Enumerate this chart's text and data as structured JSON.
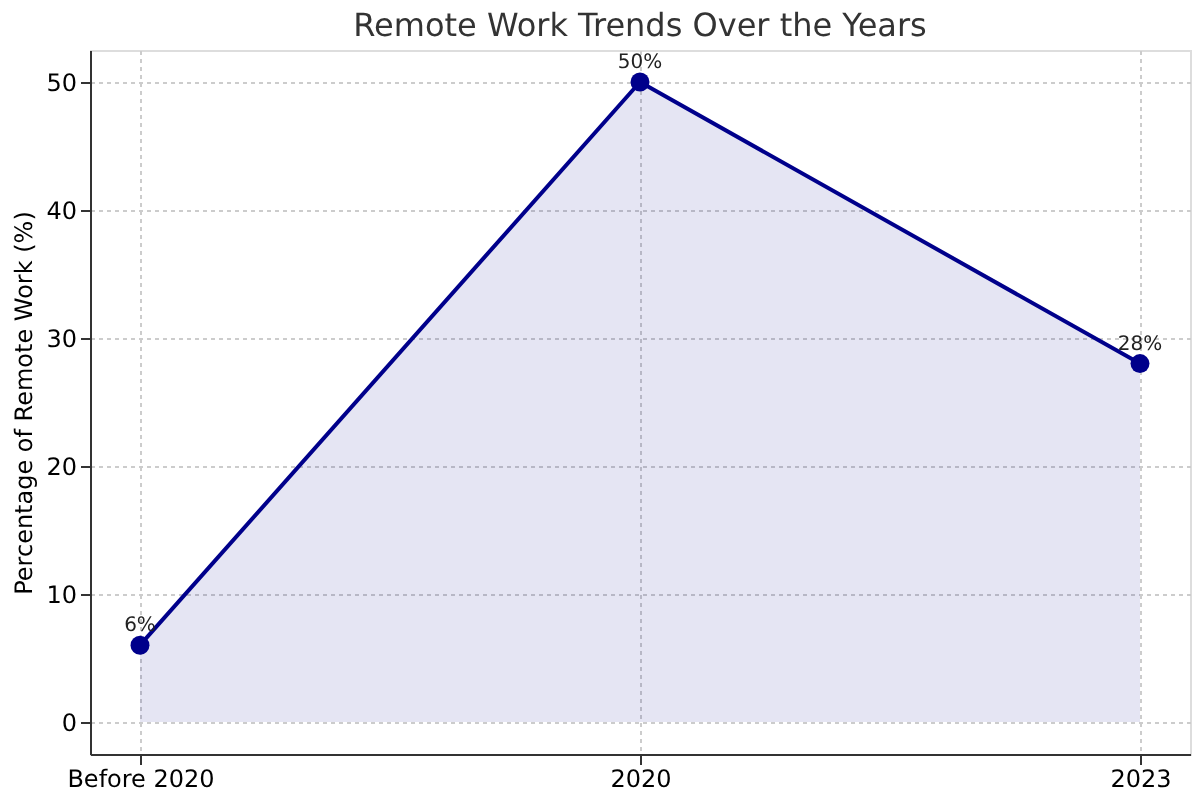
{
  "chart_data": {
    "type": "area",
    "title": "Remote Work Trends Over the Years",
    "ylabel": "Percentage of Remote Work (%)",
    "categories": [
      "Before 2020",
      "2020",
      "2023"
    ],
    "series": [
      {
        "color": "#00008b",
        "values": [
          6,
          50,
          28
        ],
        "value_labels": [
          "6%",
          "50%",
          "28%"
        ]
      }
    ],
    "ylim": [
      -2.5,
      52.5
    ],
    "yticks": [
      0,
      10,
      20,
      30,
      40,
      50
    ],
    "grid": true,
    "marker": "circle",
    "line_style": "solid"
  }
}
